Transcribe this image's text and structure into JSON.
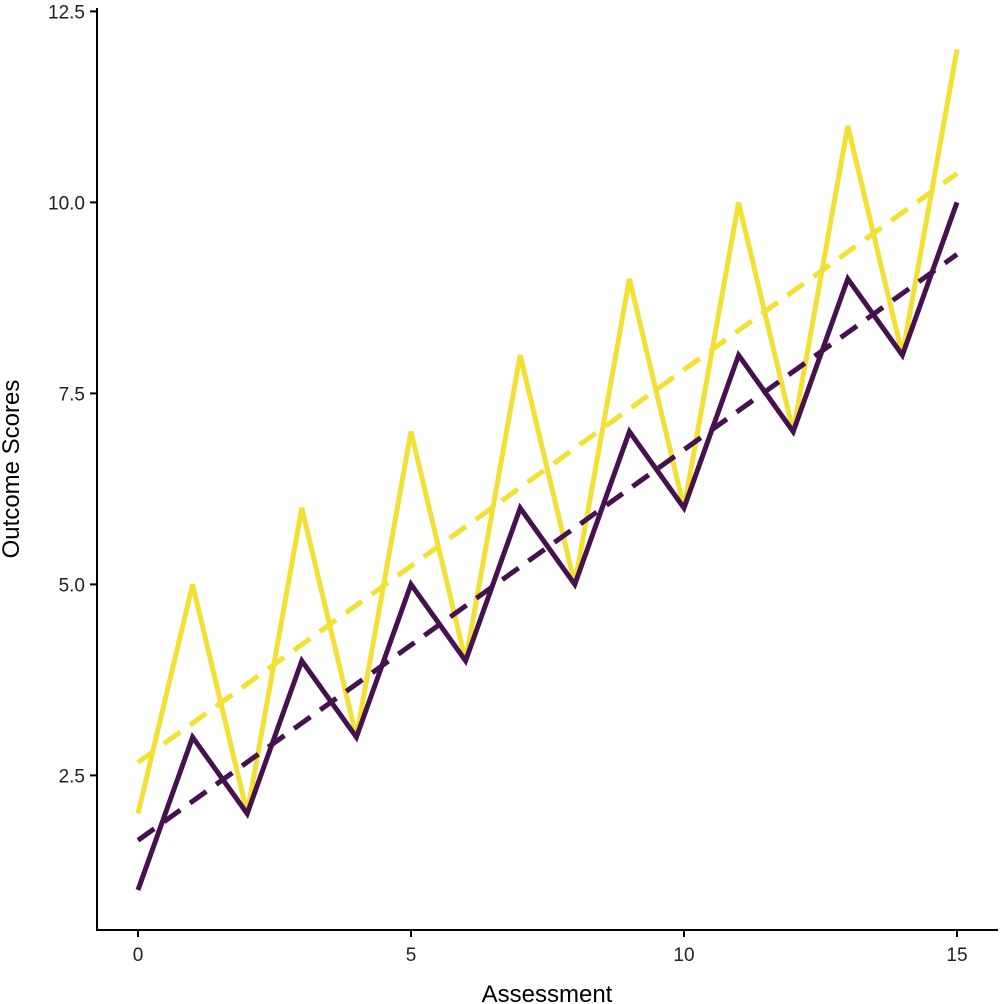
{
  "chart_data": {
    "type": "line",
    "title": "",
    "xlabel": "Assessment",
    "ylabel": "Outcome Scores",
    "xlim": [
      -1.5,
      15.6
    ],
    "ylim": [
      -0.1,
      12.6
    ],
    "x_ticks": [
      0,
      5,
      10,
      15
    ],
    "x_tick_labels": [
      "0",
      "5",
      "10",
      "15"
    ],
    "y_ticks": [
      2.5,
      5.0,
      7.5,
      10.0,
      12.5
    ],
    "y_tick_labels": [
      "2.5",
      "5.0",
      "7.5",
      "10.0",
      "12.5"
    ],
    "grid": false,
    "legend": "none",
    "x": [
      0,
      1,
      2,
      3,
      4,
      5,
      6,
      7,
      8,
      9,
      10,
      11,
      12,
      13,
      14,
      15
    ],
    "series": [
      {
        "color": "#F2E034",
        "style": "solid",
        "values": [
          2,
          5,
          2,
          6,
          3,
          7,
          4,
          8,
          5,
          9,
          6,
          10,
          7,
          11,
          8,
          12
        ]
      },
      {
        "color": "#45114F",
        "style": "solid",
        "values": [
          1,
          3,
          2,
          4,
          3,
          5,
          4,
          6,
          5,
          7,
          6,
          8,
          7,
          9,
          8,
          10
        ]
      },
      {
        "color": "#F2E034",
        "style": "dashed",
        "trend": true,
        "x": [
          0,
          15
        ],
        "values": [
          2.67,
          10.38
        ]
      },
      {
        "color": "#45114F",
        "style": "dashed",
        "trend": true,
        "x": [
          0,
          15
        ],
        "values": [
          1.65,
          9.32
        ]
      }
    ]
  }
}
